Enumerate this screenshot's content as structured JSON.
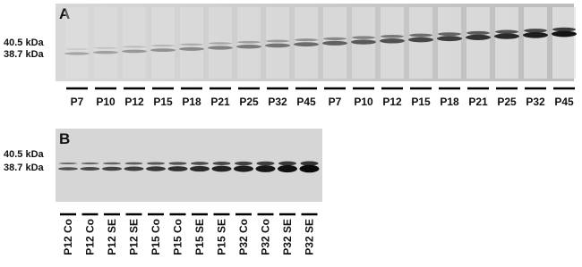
{
  "panels": [
    {
      "label": "A",
      "markers": [
        "40.5 kDa",
        "38.7 kDa"
      ],
      "lanes": [
        "P7",
        "P10",
        "P12",
        "P15",
        "P18",
        "P21",
        "P25",
        "P32",
        "P45",
        "P7",
        "P10",
        "P12",
        "P15",
        "P18",
        "P21",
        "P25",
        "P32",
        "P45"
      ]
    },
    {
      "label": "B",
      "markers": [
        "40.5 kDa",
        "38.7 kDa"
      ],
      "lanes": [
        "P12 Co",
        "P12 Co",
        "P12 SE",
        "P12 SE",
        "P15 Co",
        "P15 Co",
        "P15 SE",
        "P15 SE",
        "P32 Co",
        "P32 Co",
        "P32 SE",
        "P32 SE"
      ]
    }
  ]
}
